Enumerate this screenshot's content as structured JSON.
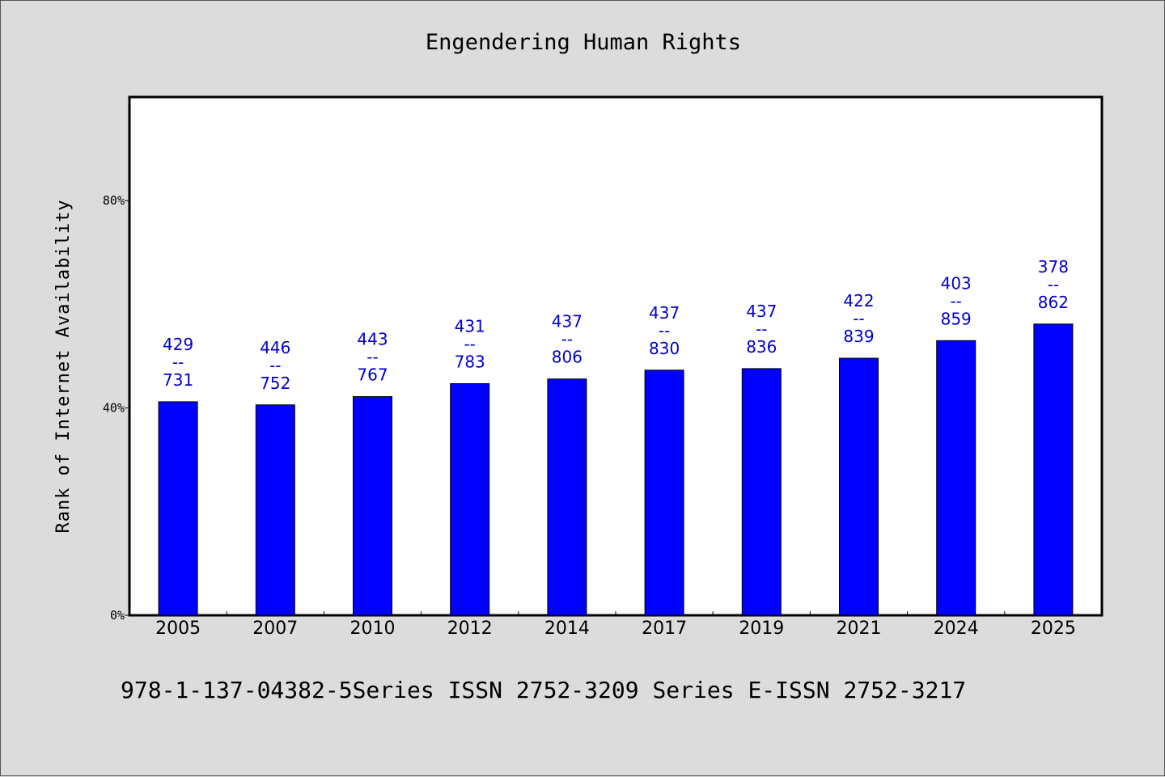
{
  "chart_data": {
    "type": "bar",
    "title": "Engendering Human Rights",
    "xlabel": "",
    "ylabel": "Rank of Internet Availability",
    "categories": [
      "2005",
      "2007",
      "2010",
      "2012",
      "2014",
      "2017",
      "2019",
      "2021",
      "2024",
      "2025"
    ],
    "values": [
      41.2,
      40.6,
      42.2,
      44.7,
      45.6,
      47.3,
      47.6,
      49.6,
      53.0,
      56.2
    ],
    "data_labels": [
      [
        "429",
        "--",
        "731"
      ],
      [
        "446",
        "--",
        "752"
      ],
      [
        "443",
        "--",
        "767"
      ],
      [
        "431",
        "--",
        "783"
      ],
      [
        "437",
        "--",
        "806"
      ],
      [
        "437",
        "--",
        "830"
      ],
      [
        "437",
        "--",
        "836"
      ],
      [
        "422",
        "--",
        "839"
      ],
      [
        "403",
        "--",
        "859"
      ],
      [
        "378",
        "--",
        "862"
      ]
    ],
    "yticks": [
      0,
      40,
      80
    ],
    "ytick_labels": [
      "0%",
      "40%",
      "80%"
    ],
    "ylim": [
      0,
      100
    ],
    "grid": false,
    "bar_color": "#0000ff",
    "label_color": "#0000cc"
  },
  "footer": "978-1-137-04382-5Series ISSN 2752-3209 Series E-ISSN 2752-3217"
}
